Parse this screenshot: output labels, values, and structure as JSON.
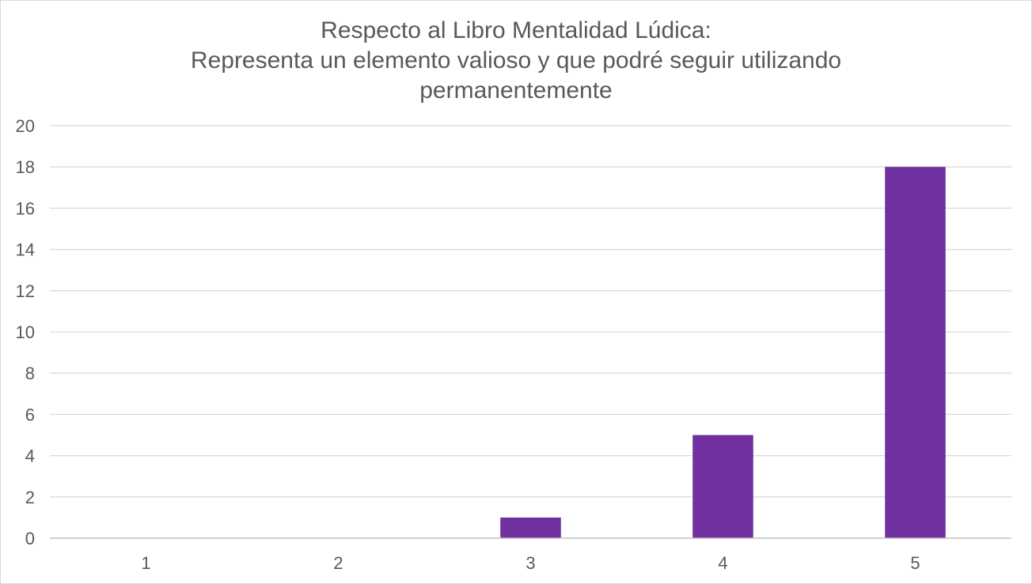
{
  "chart_data": {
    "type": "bar",
    "title_lines": [
      "Respecto al Libro Mentalidad Lúdica:",
      "Representa un elemento valioso y que podré seguir utilizando",
      "permanentemente"
    ],
    "categories": [
      "1",
      "2",
      "3",
      "4",
      "5"
    ],
    "values": [
      0,
      0,
      1,
      5,
      18
    ],
    "ylim": [
      0,
      20
    ],
    "y_ticks": [
      0,
      2,
      4,
      6,
      8,
      10,
      12,
      14,
      16,
      18,
      20
    ],
    "y_tick_labels": [
      "0",
      "2",
      "4",
      "6",
      "8",
      "10",
      "12",
      "14",
      "16",
      "18",
      "20"
    ],
    "xlabel": "",
    "ylabel": "",
    "grid": true,
    "legend": "none",
    "colors": {
      "bar": "#7030a0",
      "grid": "#d9d9d9",
      "axis": "#bfbfbf",
      "text": "#595959"
    }
  }
}
